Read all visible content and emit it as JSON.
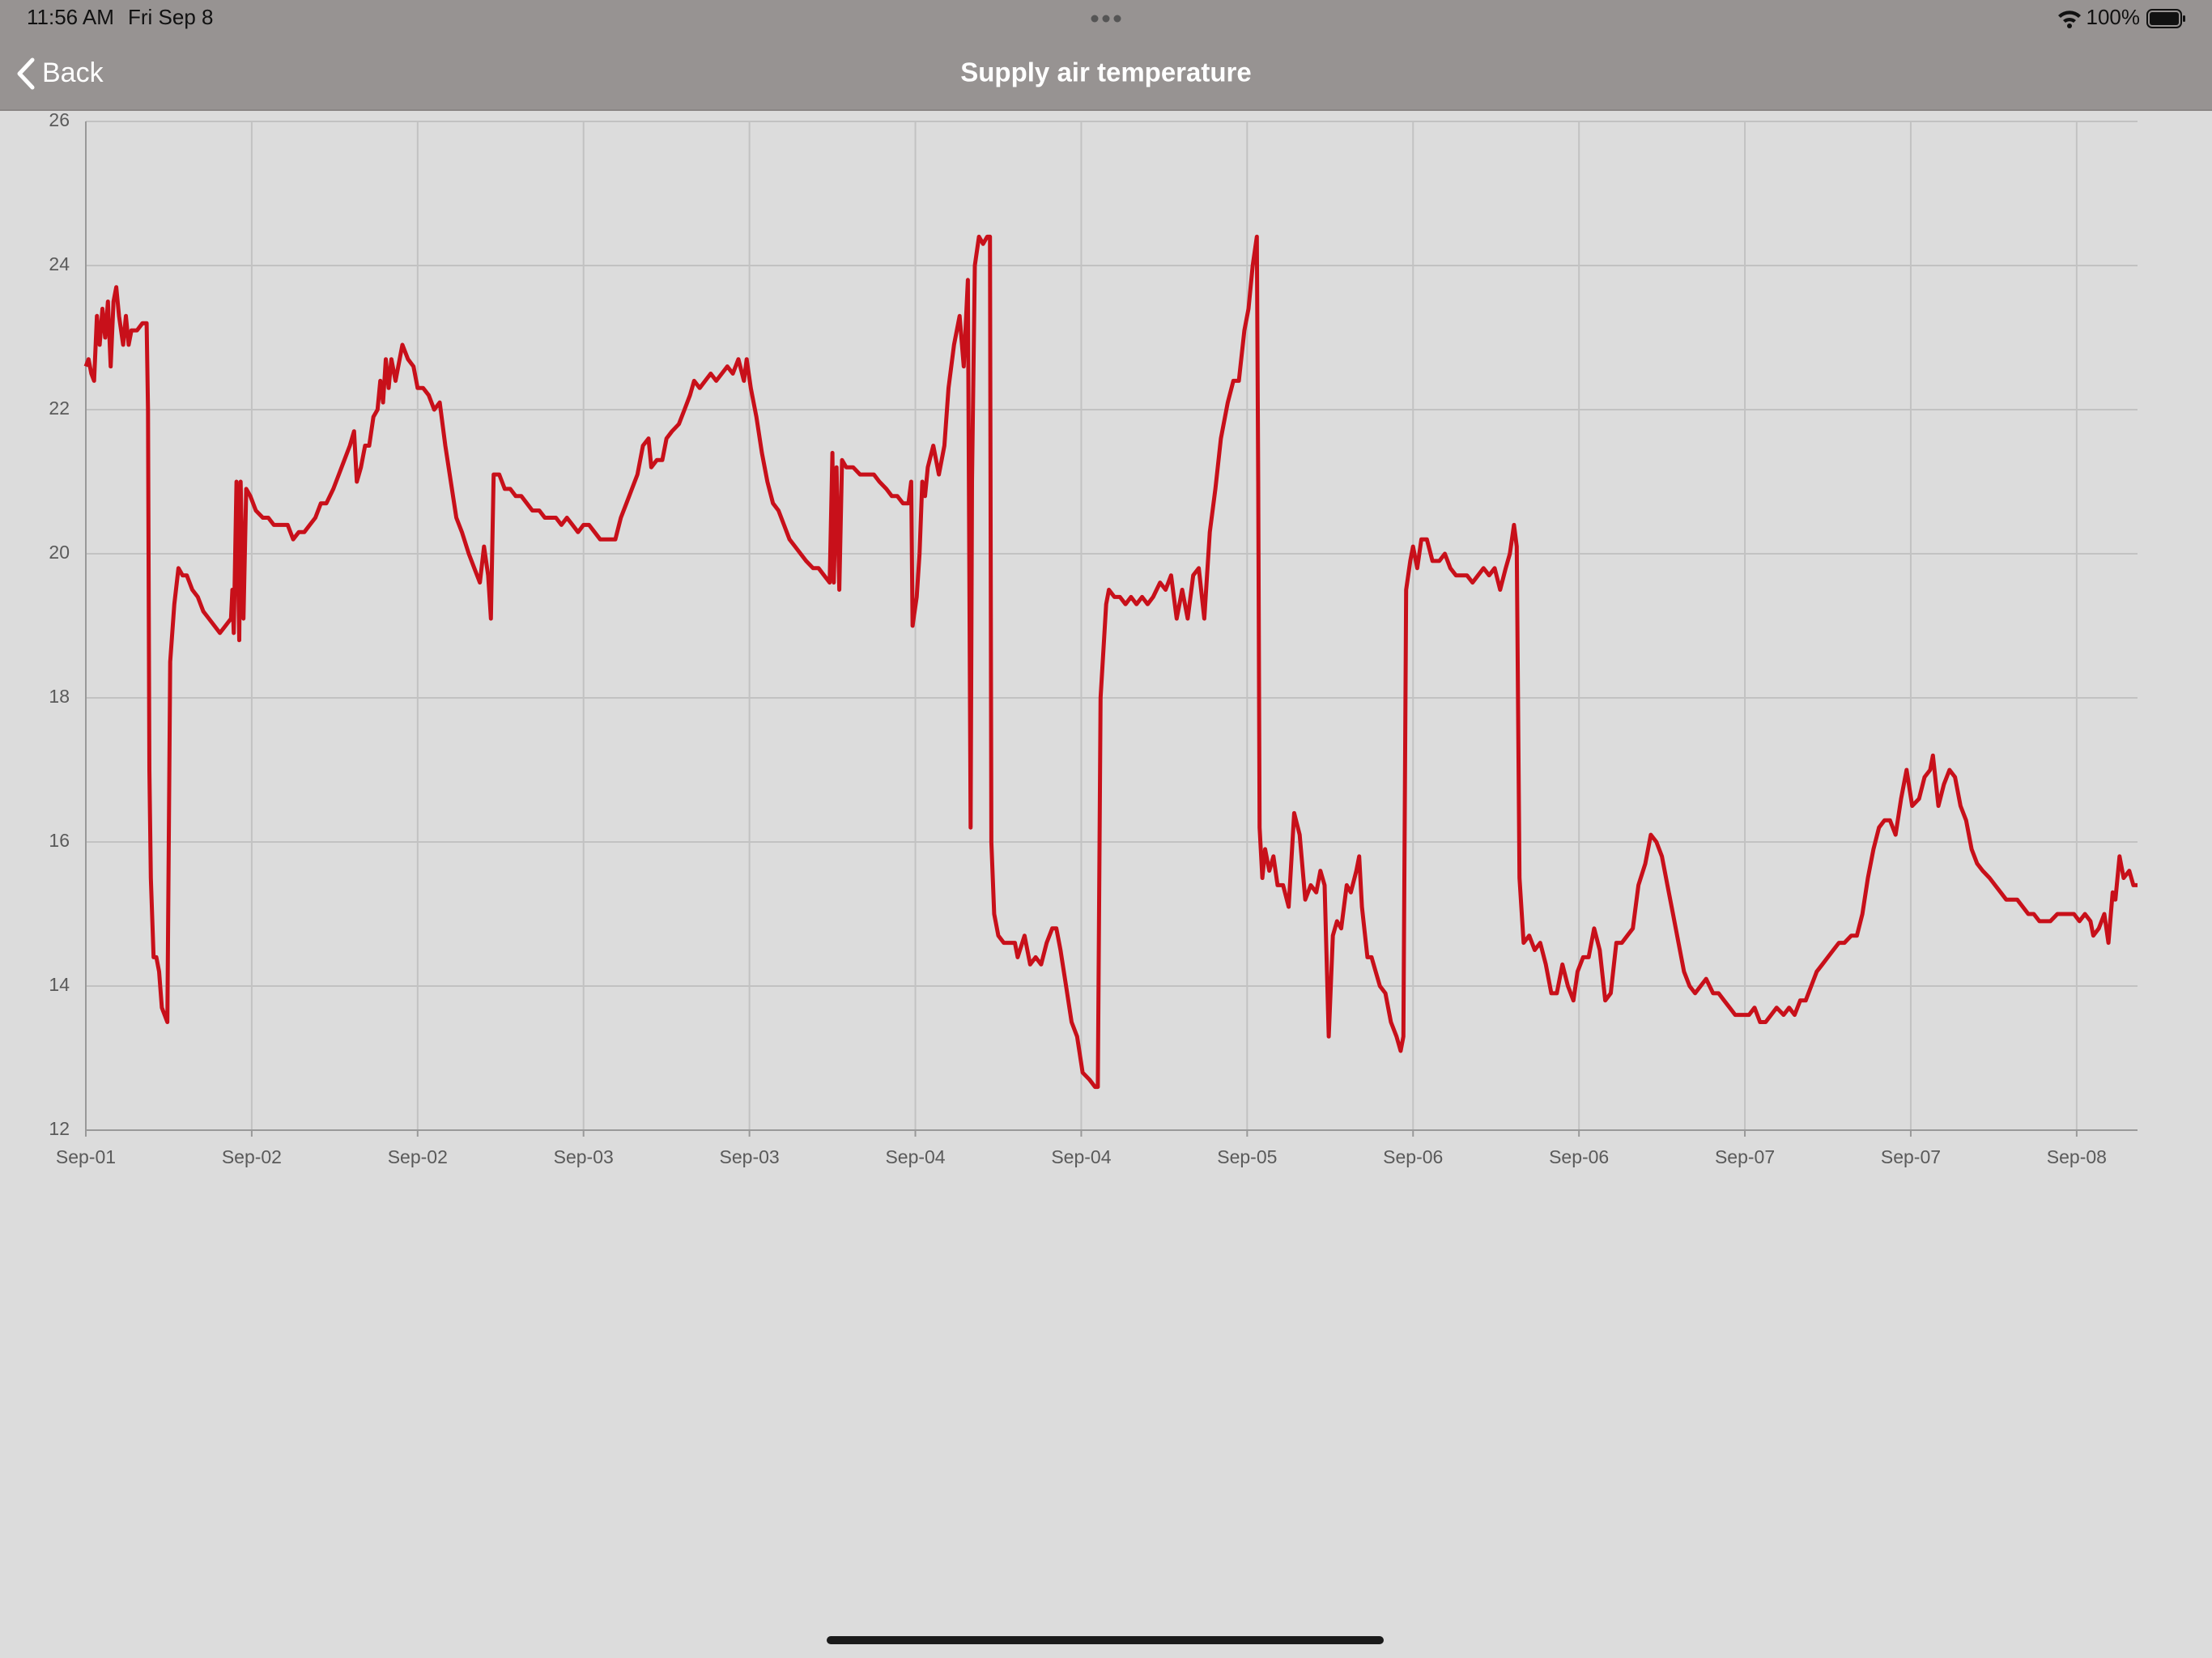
{
  "status_bar": {
    "time": "11:56 AM",
    "date": "Fri Sep 8",
    "battery": "100%"
  },
  "nav_bar": {
    "back": "Back",
    "title": "Supply air temperature"
  },
  "chart_data": {
    "type": "line",
    "x": [
      0,
      0.2,
      0.4,
      0.6,
      0.8,
      1.0,
      1.2,
      1.4,
      1.6,
      1.8,
      2.0,
      2.2,
      2.4,
      2.7,
      2.9,
      3.1,
      3.3,
      3.7,
      4.1,
      4.4,
      4.5,
      4.6,
      4.7,
      4.9,
      5.1,
      5.3,
      5.5,
      5.7,
      5.9,
      6.1,
      6.4,
      6.7,
      7.0,
      7.3,
      7.7,
      8.1,
      8.5,
      8.9,
      9.3,
      9.7,
      10.1,
      10.5,
      10.6,
      10.7,
      10.9,
      11.1,
      11.2,
      11.4,
      11.6,
      11.9,
      12.3,
      12.8,
      13.2,
      13.6,
      14.0,
      14.6,
      15.0,
      15.4,
      15.8,
      16.2,
      16.6,
      17.0,
      17.4,
      17.9,
      18.3,
      18.7,
      19.1,
      19.4,
      19.6,
      19.9,
      20.2,
      20.5,
      20.8,
      21.1,
      21.3,
      21.5,
      21.7,
      21.9,
      22.1,
      22.4,
      22.9,
      23.3,
      23.7,
      24.0,
      24.4,
      24.8,
      25.2,
      25.6,
      26.0,
      26.4,
      26.8,
      27.2,
      27.7,
      28.1,
      28.5,
      28.8,
      29.1,
      29.3,
      29.5,
      29.9,
      30.3,
      30.7,
      31.1,
      31.5,
      31.9,
      32.3,
      32.8,
      33.2,
      33.6,
      34.0,
      34.4,
      34.8,
      35.2,
      35.6,
      36.0,
      36.4,
      36.8,
      37.2,
      37.9,
      38.3,
      38.7,
      39.1,
      39.5,
      39.9,
      40.3,
      40.7,
      40.9,
      41.3,
      41.7,
      42.0,
      42.4,
      42.9,
      43.3,
      43.7,
      44.0,
      44.4,
      44.8,
      45.2,
      45.6,
      46.0,
      46.4,
      46.8,
      47.2,
      47.6,
      47.8,
      48.1,
      48.5,
      48.9,
      49.3,
      49.7,
      50.1,
      50.5,
      50.9,
      51.3,
      51.7,
      52.1,
      52.6,
      53.0,
      53.4,
      53.8,
      54.0,
      54.1,
      54.3,
      54.5,
      54.7,
      55.0,
      55.5,
      56.0,
      56.5,
      57.0,
      57.4,
      57.9,
      58.3,
      58.7,
      59.1,
      59.5,
      59.7,
      59.8,
      60.1,
      60.3,
      60.5,
      60.7,
      60.9,
      61.3,
      61.7,
      62.1,
      62.4,
      62.8,
      63.2,
      63.5,
      63.8,
      64.0,
      64.1,
      64.3,
      64.6,
      64.9,
      65.2,
      65.4,
      65.5,
      65.7,
      66.0,
      66.4,
      66.8,
      67.2,
      67.4,
      67.9,
      68.3,
      68.7,
      69.1,
      69.5,
      69.9,
      70.2,
      70.5,
      70.9,
      71.3,
      71.7,
      72.1,
      72.6,
      73.0,
      73.2,
      73.4,
      73.8,
      74.0,
      74.4,
      74.8,
      75.2,
      75.6,
      76.0,
      76.4,
      76.8,
      77.2,
      77.7,
      78.1,
      78.5,
      78.9,
      79.3,
      79.7,
      80.1,
      80.5,
      80.9,
      81.3,
      81.7,
      82.1,
      82.6,
      83.0,
      83.4,
      83.8,
      84.1,
      84.4,
      84.7,
      84.8,
      84.9,
      85.1,
      85.3,
      85.6,
      85.9,
      86.2,
      86.6,
      87.0,
      87.4,
      87.8,
      88.2,
      88.6,
      89.0,
      89.3,
      89.6,
      89.9,
      90.2,
      90.5,
      90.8,
      91.2,
      91.5,
      91.9,
      92.1,
      92.3,
      92.7,
      93.0,
      93.3,
      93.6,
      94.0,
      94.4,
      94.8,
      95.1,
      95.3,
      95.5,
      95.8,
      96.0,
      96.3,
      96.6,
      97.0,
      97.4,
      97.9,
      98.3,
      98.7,
      99.1,
      99.5,
      99.9,
      100.3,
      100.7,
      101.1,
      101.5,
      101.9,
      102.3,
      102.7,
      103.0,
      103.3,
      103.5,
      103.7,
      104.0,
      104.4,
      104.8,
      105.2,
      105.6,
      106.0,
      106.4,
      106.8,
      107.2,
      107.6,
      107.9,
      108.3,
      108.7,
      109.1,
      109.5,
      109.9,
      110.3,
      110.7,
      111.1,
      111.5,
      111.9,
      112.3,
      112.8,
      113.2,
      113.6,
      114.0,
      114.4,
      114.8,
      115.2,
      115.6,
      116.0,
      116.4,
      116.8,
      117.2,
      117.7,
      118.1,
      118.5,
      118.9,
      119.3,
      119.9,
      120.3,
      120.7,
      121.1,
      121.5,
      121.9,
      122.3,
      122.8,
      123.2,
      123.6,
      124.0,
      124.4,
      124.8,
      125.2,
      125.6,
      126.0,
      126.4,
      126.8,
      127.2,
      127.7,
      128.1,
      128.5,
      128.9,
      129.3,
      129.7,
      130.1,
      130.5,
      130.9,
      131.3,
      131.7,
      132.1,
      132.6,
      133.0,
      133.4,
      133.6,
      134.0,
      134.4,
      134.8,
      135.2,
      135.6,
      136.0,
      136.4,
      136.8,
      137.2,
      137.7,
      138.1,
      138.5,
      138.9,
      139.3,
      139.7,
      140.1,
      140.5,
      140.9,
      141.3,
      141.7,
      142.1,
      142.6,
      143.0,
      143.4,
      143.8,
      144.2,
      144.6,
      145.0,
      145.2,
      145.6,
      146.0,
      146.3,
      146.6,
      146.8,
      147.1,
      147.4,
      147.8,
      148.1,
      148.4
    ],
    "series": [
      {
        "color": "#c8101a",
        "values": [
          22.6,
          22.7,
          22.5,
          22.4,
          23.3,
          22.9,
          23.4,
          23.0,
          23.5,
          22.6,
          23.5,
          23.7,
          23.3,
          22.9,
          23.3,
          22.9,
          23.1,
          23.1,
          23.2,
          23.2,
          22.0,
          17.0,
          15.5,
          14.4,
          14.4,
          14.2,
          13.7,
          13.6,
          13.5,
          18.5,
          19.3,
          19.8,
          19.7,
          19.7,
          19.5,
          19.4,
          19.2,
          19.1,
          19.0,
          18.9,
          19.0,
          19.1,
          19.5,
          18.9,
          21.0,
          18.8,
          21.0,
          19.1,
          20.9,
          20.8,
          20.6,
          20.5,
          20.5,
          20.4,
          20.4,
          20.4,
          20.2,
          20.3,
          20.3,
          20.4,
          20.5,
          20.7,
          20.7,
          20.9,
          21.1,
          21.3,
          21.5,
          21.7,
          21.0,
          21.2,
          21.5,
          21.5,
          21.9,
          22.0,
          22.4,
          22.1,
          22.7,
          22.3,
          22.7,
          22.4,
          22.9,
          22.7,
          22.6,
          22.3,
          22.3,
          22.2,
          22.0,
          22.1,
          21.5,
          21.0,
          20.5,
          20.3,
          20.0,
          19.8,
          19.6,
          20.1,
          19.7,
          19.1,
          21.1,
          21.1,
          20.9,
          20.9,
          20.8,
          20.8,
          20.7,
          20.6,
          20.6,
          20.5,
          20.5,
          20.5,
          20.4,
          20.5,
          20.4,
          20.3,
          20.4,
          20.4,
          20.3,
          20.2,
          20.2,
          20.2,
          20.5,
          20.7,
          20.9,
          21.1,
          21.5,
          21.6,
          21.2,
          21.3,
          21.3,
          21.6,
          21.7,
          21.8,
          22.0,
          22.2,
          22.4,
          22.3,
          22.4,
          22.5,
          22.4,
          22.5,
          22.6,
          22.5,
          22.7,
          22.4,
          22.7,
          22.3,
          21.9,
          21.4,
          21.0,
          20.7,
          20.6,
          20.4,
          20.2,
          20.1,
          20.0,
          19.9,
          19.8,
          19.8,
          19.7,
          19.6,
          21.4,
          19.6,
          21.2,
          19.5,
          21.3,
          21.2,
          21.2,
          21.1,
          21.1,
          21.1,
          21.0,
          20.9,
          20.8,
          20.8,
          20.7,
          20.7,
          21.0,
          19.0,
          19.4,
          20.0,
          21.0,
          20.8,
          21.2,
          21.5,
          21.1,
          21.5,
          22.3,
          22.9,
          23.3,
          22.6,
          23.8,
          16.2,
          21.0,
          24.0,
          24.4,
          24.3,
          24.4,
          24.4,
          16.0,
          15.0,
          14.7,
          14.6,
          14.6,
          14.6,
          14.4,
          14.7,
          14.3,
          14.4,
          14.3,
          14.6,
          14.8,
          14.8,
          14.5,
          14.0,
          13.5,
          13.3,
          12.8,
          12.7,
          12.6,
          12.6,
          18.0,
          19.3,
          19.5,
          19.4,
          19.4,
          19.3,
          19.4,
          19.3,
          19.4,
          19.3,
          19.4,
          19.6,
          19.5,
          19.7,
          19.1,
          19.5,
          19.1,
          19.7,
          19.8,
          19.1,
          20.3,
          20.9,
          21.6,
          22.1,
          22.4,
          22.4,
          23.1,
          23.4,
          24.0,
          24.4,
          21.0,
          16.2,
          15.5,
          15.9,
          15.6,
          15.8,
          15.4,
          15.4,
          15.1,
          16.4,
          16.1,
          15.2,
          15.4,
          15.3,
          15.6,
          15.4,
          13.3,
          14.7,
          14.9,
          14.8,
          15.4,
          15.3,
          15.6,
          15.8,
          15.1,
          14.4,
          14.4,
          14.2,
          14.0,
          13.9,
          13.5,
          13.3,
          13.1,
          13.3,
          19.5,
          19.9,
          20.1,
          19.8,
          20.2,
          20.2,
          19.9,
          19.9,
          20.0,
          19.8,
          19.7,
          19.7,
          19.7,
          19.6,
          19.7,
          19.8,
          19.7,
          19.8,
          19.5,
          19.8,
          20.0,
          20.4,
          20.1,
          15.5,
          14.6,
          14.7,
          14.5,
          14.6,
          14.3,
          13.9,
          13.9,
          14.3,
          14.0,
          13.8,
          14.2,
          14.4,
          14.4,
          14.8,
          14.5,
          13.8,
          13.9,
          14.6,
          14.6,
          14.7,
          14.8,
          15.4,
          15.7,
          16.1,
          16.0,
          15.8,
          15.4,
          15.0,
          14.6,
          14.2,
          14.0,
          13.9,
          14.0,
          14.1,
          13.9,
          13.9,
          13.8,
          13.7,
          13.6,
          13.6,
          13.6,
          13.7,
          13.5,
          13.5,
          13.6,
          13.7,
          13.6,
          13.7,
          13.6,
          13.8,
          13.8,
          14.0,
          14.2,
          14.3,
          14.4,
          14.5,
          14.6,
          14.6,
          14.7,
          14.7,
          15.0,
          15.5,
          15.9,
          16.2,
          16.3,
          16.3,
          16.1,
          16.6,
          17.0,
          16.5,
          16.6,
          16.9,
          17.0,
          17.2,
          16.5,
          16.8,
          17.0,
          16.9,
          16.5,
          16.3,
          15.9,
          15.7,
          15.6,
          15.5,
          15.4,
          15.3,
          15.2,
          15.2,
          15.2,
          15.1,
          15.0,
          15.0,
          14.9,
          14.9,
          14.9,
          15.0,
          15.0,
          15.0,
          15.0,
          14.9,
          15.0,
          14.9,
          14.7,
          14.8,
          15.0,
          14.6,
          15.3,
          15.2,
          15.8,
          15.5,
          15.6,
          15.4,
          15.4
        ]
      }
    ],
    "xlim": [
      0,
      148.4
    ],
    "xticks": [
      {
        "value": 0,
        "label": "Sep-01"
      },
      {
        "value": 12,
        "label": "Sep-02"
      },
      {
        "value": 24,
        "label": "Sep-02"
      },
      {
        "value": 36,
        "label": "Sep-03"
      },
      {
        "value": 48,
        "label": "Sep-03"
      },
      {
        "value": 60,
        "label": "Sep-04"
      },
      {
        "value": 72,
        "label": "Sep-04"
      },
      {
        "value": 84,
        "label": "Sep-05"
      },
      {
        "value": 96,
        "label": "Sep-06"
      },
      {
        "value": 108,
        "label": "Sep-06"
      },
      {
        "value": 120,
        "label": "Sep-07"
      },
      {
        "value": 132,
        "label": "Sep-07"
      },
      {
        "value": 144,
        "label": "Sep-08"
      }
    ],
    "ylim": [
      12,
      26
    ],
    "yticks": [
      12,
      14,
      16,
      18,
      20,
      22,
      24,
      26
    ],
    "grid": true
  }
}
